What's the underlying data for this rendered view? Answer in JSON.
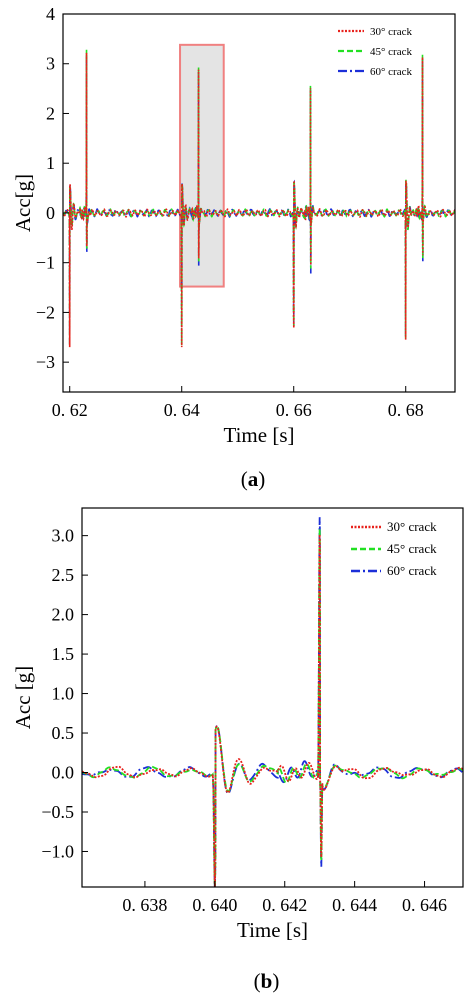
{
  "colors": {
    "s30": "#e8221c",
    "s45": "#22e022",
    "s60": "#1c2fd8",
    "highlight_fill": "#e4e4e4",
    "highlight_stroke": "#f08080"
  },
  "chart_data": [
    {
      "type": "line",
      "caption_prefix": "(",
      "caption_letter": "a",
      "caption_suffix": ")",
      "xlabel": "Time [s]",
      "ylabel": "Acc[g]",
      "xlim": [
        0.6188,
        0.6888
      ],
      "ylim": [
        -3.6,
        4.0
      ],
      "xticks": [
        0.62,
        0.64,
        0.66,
        0.68
      ],
      "xtick_labels": [
        "0. 62",
        "0. 64",
        "0. 66",
        "0. 68"
      ],
      "yticks": [
        -3,
        -2,
        -1,
        0,
        1,
        2,
        3,
        4
      ],
      "ytick_labels": [
        "−3",
        "−2",
        "−1",
        "0",
        "1",
        "2",
        "3",
        "4"
      ],
      "legend_position": "top-right",
      "highlight_region": {
        "x": [
          0.6397,
          0.6475
        ],
        "y": [
          -1.48,
          3.38
        ]
      },
      "event_period": 0.02,
      "first_event": 0.62,
      "series": [
        {
          "name": "30° crack",
          "style": "dotted",
          "peak": 3.22,
          "trough": -1.05,
          "onset_trough": -2.75,
          "onset_peak": 0.72
        },
        {
          "name": "45° crack",
          "style": "dashed",
          "peak": 3.28,
          "trough": -1.12,
          "onset_trough": -2.72,
          "onset_peak": 0.7
        },
        {
          "name": "60° crack",
          "style": "dashdot",
          "peak": 3.18,
          "trough": -1.22,
          "onset_trough": -2.7,
          "onset_peak": 0.68
        }
      ]
    },
    {
      "type": "line",
      "caption_prefix": "(",
      "caption_letter": "b",
      "caption_suffix": ")",
      "xlabel": "Time [s]",
      "ylabel": "Acc [g]",
      "xlim": [
        0.6362,
        0.6471
      ],
      "ylim": [
        -1.45,
        3.35
      ],
      "xticks": [
        0.638,
        0.64,
        0.642,
        0.644,
        0.646
      ],
      "xtick_labels": [
        "0. 638",
        "0. 640",
        "0. 642",
        "0. 644",
        "0. 646"
      ],
      "yticks": [
        -1.0,
        -0.5,
        0.0,
        0.5,
        1.0,
        1.5,
        2.0,
        2.5,
        3.0
      ],
      "ytick_labels": [
        "−1.0",
        "−0.5",
        "0.0",
        "0.5",
        "1.0",
        "1.5",
        "2.0",
        "2.5",
        "3.0"
      ],
      "legend_position": "top-right",
      "series": [
        {
          "name": "30° crack",
          "style": "dotted",
          "peak": 3.02,
          "trough": -1.08,
          "onset_trough": -1.45,
          "onset_peak": 0.72
        },
        {
          "name": "45° crack",
          "style": "dashed",
          "peak": 3.1,
          "trough": -1.12,
          "onset_trough": -1.45,
          "onset_peak": 0.7
        },
        {
          "name": "60° crack",
          "style": "dashdot",
          "peak": 3.24,
          "trough": -1.2,
          "onset_trough": -1.45,
          "onset_peak": 0.68
        }
      ]
    }
  ]
}
